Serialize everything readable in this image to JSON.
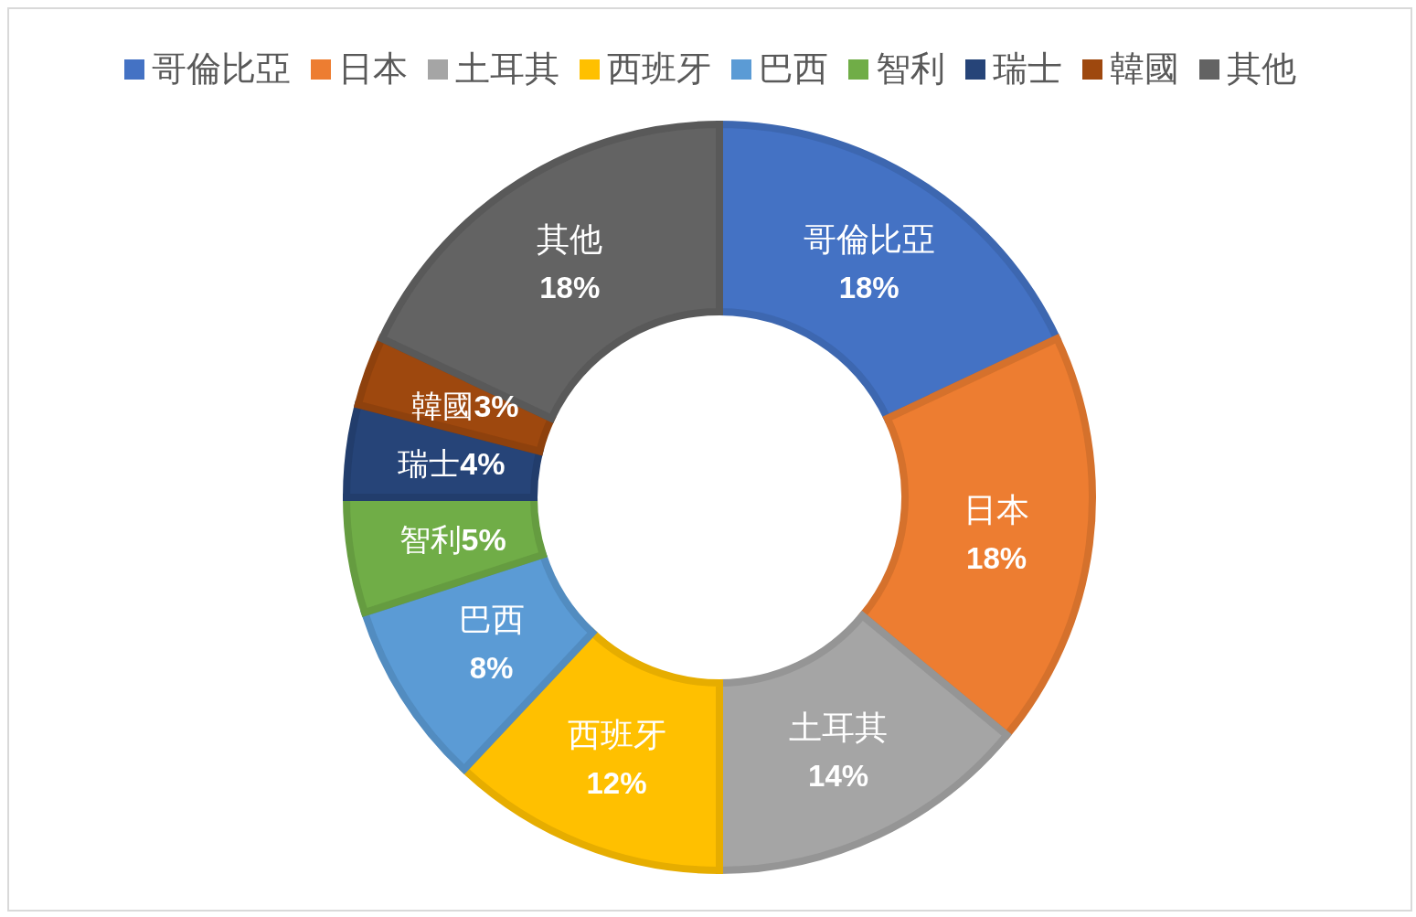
{
  "chart_data": {
    "type": "donut",
    "categories": [
      "哥倫比亞",
      "日本",
      "土耳其",
      "西班牙",
      "巴西",
      "智利",
      "瑞士",
      "韓國",
      "其他"
    ],
    "values": [
      18,
      18,
      14,
      12,
      8,
      5,
      4,
      3,
      18
    ],
    "value_labels": [
      "18%",
      "18%",
      "14%",
      "12%",
      "8%",
      "5%",
      "4%",
      "3%",
      "18%"
    ],
    "colors": [
      "#4472c4",
      "#ed7d31",
      "#a5a5a5",
      "#ffc000",
      "#5b9bd5",
      "#70ad47",
      "#264478",
      "#9e480e",
      "#636363"
    ],
    "legend": "top"
  }
}
